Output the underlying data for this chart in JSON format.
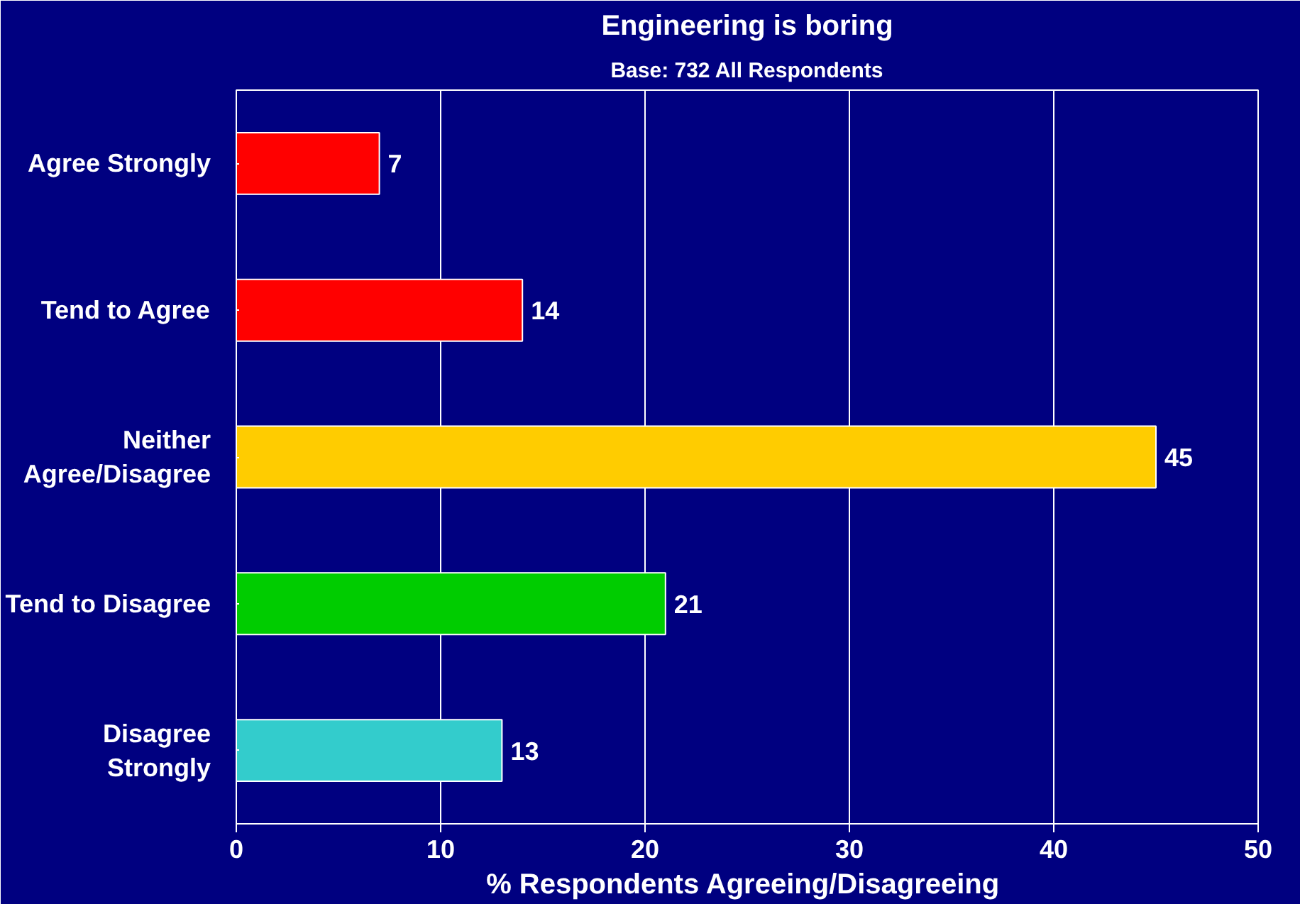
{
  "chart_data": {
    "type": "bar",
    "orientation": "horizontal",
    "title": "Engineering is boring",
    "subtitle": "Base: 732 All Respondents",
    "xlabel": "%  Respondents Agreeing/Disagreeing",
    "categories": [
      "Agree Strongly",
      "Tend to Agree",
      "Neither\nAgree/Disagree",
      "Tend to Disagree",
      "Disagree\nStrongly"
    ],
    "values": [
      7,
      14,
      45,
      21,
      13
    ],
    "colors": [
      "#ff0000",
      "#ff0000",
      "#ffcc00",
      "#00cc00",
      "#33cccc"
    ],
    "xlim": [
      0,
      50
    ],
    "xticks": [
      0,
      10,
      20,
      30,
      40,
      50
    ],
    "grid": "x",
    "data_labels": true
  }
}
